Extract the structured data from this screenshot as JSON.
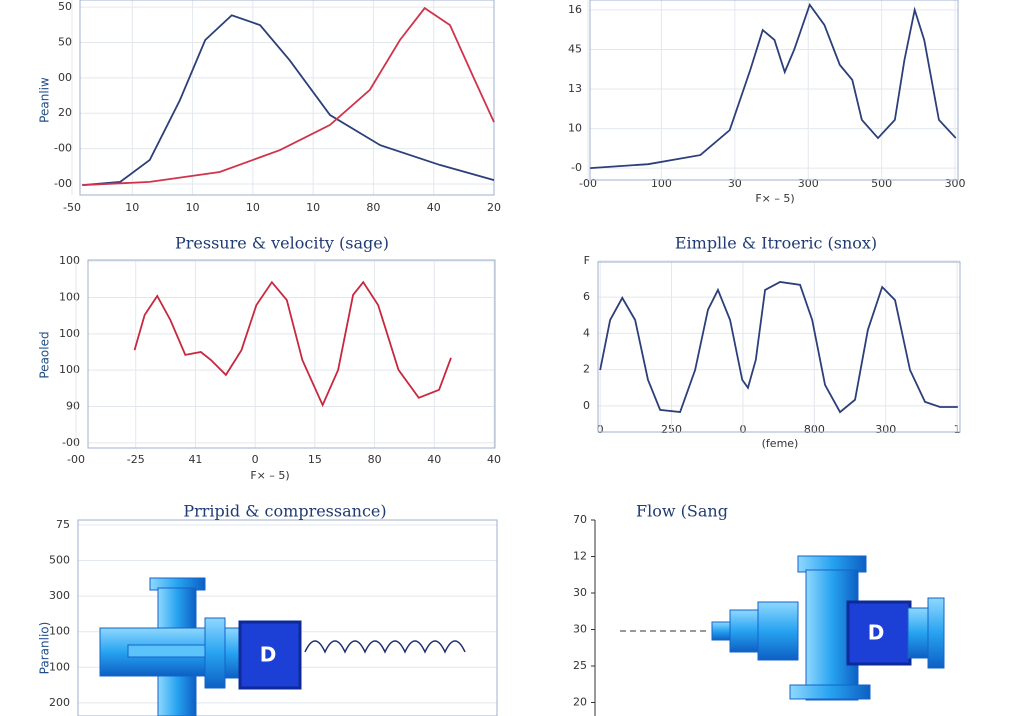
{
  "chart_data": [
    {
      "type": "line",
      "y_label": "Peanliw",
      "grid": true,
      "xlim": [
        0,
        7
      ],
      "ylim": [
        -0.31,
        5.2
      ],
      "xticks": [
        {
          "value": 0,
          "label": "-50"
        },
        {
          "value": 1,
          "label": "10"
        },
        {
          "value": 2,
          "label": "10"
        },
        {
          "value": 3,
          "label": "10"
        },
        {
          "value": 4,
          "label": "10"
        },
        {
          "value": 5,
          "label": "80"
        },
        {
          "value": 6,
          "label": "40"
        },
        {
          "value": 7,
          "label": "20"
        }
      ],
      "yticks": [
        {
          "value": 5,
          "label": "50"
        },
        {
          "value": 4,
          "label": "50"
        },
        {
          "value": 3,
          "label": "00"
        },
        {
          "value": 2,
          "label": "20"
        },
        {
          "value": 1,
          "label": "-00"
        },
        {
          "value": 0,
          "label": "-00"
        }
      ],
      "series": [
        {
          "color": "#2c3f7a",
          "x": [
            0.17,
            0.8,
            1.29,
            1.79,
            2.21,
            2.65,
            3.12,
            3.61,
            4.28,
            5.11,
            6.1,
            7.0
          ],
          "values": [
            -0.03,
            0.06,
            0.68,
            2.37,
            4.07,
            4.77,
            4.49,
            3.5,
            1.95,
            1.1,
            0.54,
            0.11
          ]
        },
        {
          "color": "#d0344c",
          "x": [
            0.17,
            1.29,
            2.45,
            3.45,
            4.28,
            4.94,
            5.44,
            5.85,
            6.27,
            6.68,
            7.0
          ],
          "values": [
            -0.03,
            0.06,
            0.34,
            0.96,
            1.67,
            2.66,
            4.07,
            4.97,
            4.49,
            2.94,
            1.75
          ]
        }
      ]
    },
    {
      "type": "line",
      "x_label": "F× – 5)",
      "grid": true,
      "xlim": [
        0,
        5.04
      ],
      "ylim": [
        -0.3,
        4.25
      ],
      "xticks": [
        {
          "value": 0,
          "label": "-00"
        },
        {
          "value": 1,
          "label": "100"
        },
        {
          "value": 2,
          "label": "30"
        },
        {
          "value": 3,
          "label": "300"
        },
        {
          "value": 4,
          "label": "500"
        },
        {
          "value": 5,
          "label": "300"
        }
      ],
      "yticks": [
        {
          "value": 4,
          "label": "16"
        },
        {
          "value": 3,
          "label": "45"
        },
        {
          "value": 2,
          "label": "13"
        },
        {
          "value": 1,
          "label": "10"
        },
        {
          "value": 0,
          "label": "-0"
        }
      ],
      "series": [
        {
          "color": "#2c3f7a",
          "x": [
            0.03,
            0.82,
            1.53,
            1.93,
            2.21,
            2.38,
            2.54,
            2.68,
            2.81,
            3.02,
            3.22,
            3.43,
            3.6,
            3.73,
            3.95,
            4.18,
            4.31,
            4.45,
            4.58,
            4.78,
            5.01
          ],
          "values": [
            0,
            0.1,
            0.33,
            0.96,
            2.48,
            3.49,
            3.24,
            2.43,
            3.0,
            4.13,
            3.62,
            2.61,
            2.23,
            1.22,
            0.76,
            1.22,
            2.73,
            4.0,
            3.24,
            1.22,
            0.76
          ]
        }
      ]
    },
    {
      "type": "line",
      "title": "Pressure & velocity (sage)",
      "x_label": "F× – 5)",
      "y_label": "Peaoled",
      "grid": true,
      "xlim": [
        0.1,
        7
      ],
      "ylim": [
        -0.14,
        5.03
      ],
      "xticks": [
        {
          "value": 0,
          "label": "-00"
        },
        {
          "value": 1,
          "label": "-25"
        },
        {
          "value": 2,
          "label": "41"
        },
        {
          "value": 3,
          "label": "0"
        },
        {
          "value": 4,
          "label": "15"
        },
        {
          "value": 5,
          "label": "80"
        },
        {
          "value": 6,
          "label": "40"
        },
        {
          "value": 7,
          "label": "40"
        }
      ],
      "yticks": [
        {
          "value": 5,
          "label": "100"
        },
        {
          "value": 4,
          "label": "100"
        },
        {
          "value": 3,
          "label": "100"
        },
        {
          "value": 2,
          "label": "100"
        },
        {
          "value": 1,
          "label": "90"
        },
        {
          "value": 0,
          "label": "-00"
        }
      ],
      "series": [
        {
          "color": "#c8283f",
          "x": [
            0.98,
            1.15,
            1.36,
            1.58,
            1.83,
            2.09,
            2.26,
            2.51,
            2.77,
            3.02,
            3.28,
            3.53,
            3.79,
            4.13,
            4.39,
            4.64,
            4.81,
            5.06,
            5.4,
            5.74,
            6.08,
            6.28
          ],
          "values": [
            2.55,
            3.52,
            4.04,
            3.38,
            2.42,
            2.5,
            2.28,
            1.87,
            2.55,
            3.79,
            4.42,
            3.93,
            2.28,
            1.04,
            2.01,
            4.07,
            4.42,
            3.79,
            2.01,
            1.24,
            1.46,
            2.34
          ]
        }
      ]
    },
    {
      "type": "line",
      "title": "Eimplle & Itroeric (snox)",
      "x_label": "(feme)",
      "grid": true,
      "xlim": [
        -0.03,
        5.04
      ],
      "ylim": [
        -0.72,
        3.97
      ],
      "xticks": [
        {
          "value": 0,
          "label": "0"
        },
        {
          "value": 1,
          "label": "250"
        },
        {
          "value": 2,
          "label": "0"
        },
        {
          "value": 3,
          "label": "800"
        },
        {
          "value": 4,
          "label": "300"
        },
        {
          "value": 5,
          "label": "1"
        }
      ],
      "yticks": [
        {
          "value": 4,
          "label": "F"
        },
        {
          "value": 3,
          "label": "6"
        },
        {
          "value": 2,
          "label": "4"
        },
        {
          "value": 1,
          "label": "2"
        },
        {
          "value": 0,
          "label": "0"
        }
      ],
      "series": [
        {
          "color": "#2c3f7a",
          "x": [
            0,
            0.14,
            0.31,
            0.49,
            0.67,
            0.84,
            1.12,
            1.33,
            1.51,
            1.65,
            1.82,
            1.99,
            2.07,
            2.18,
            2.31,
            2.52,
            2.8,
            2.97,
            3.15,
            3.36,
            3.57,
            3.75,
            3.95,
            4.13,
            4.34,
            4.55,
            4.76,
            5.01
          ],
          "values": [
            0.99,
            2.37,
            2.98,
            2.37,
            0.72,
            -0.11,
            -0.17,
            0.99,
            2.65,
            3.2,
            2.37,
            0.72,
            0.5,
            1.27,
            3.2,
            3.42,
            3.34,
            2.37,
            0.58,
            -0.17,
            0.17,
            2.1,
            3.28,
            2.92,
            0.99,
            0.11,
            -0.03,
            -0.03
          ]
        }
      ]
    },
    {
      "type": "illustration",
      "title": "Prripid & compressance)",
      "y_label": "Paranlio)",
      "label": "D",
      "grid": true,
      "ylim": [
        -0.37,
        5.14
      ],
      "yticks": [
        {
          "value": 5,
          "label": "75"
        },
        {
          "value": 4,
          "label": "500"
        },
        {
          "value": 3,
          "label": "300"
        },
        {
          "value": 2,
          "label": "100"
        },
        {
          "value": 1,
          "label": "100"
        },
        {
          "value": 0,
          "label": "200"
        }
      ]
    },
    {
      "type": "illustration",
      "title": "Flow (Sang",
      "label": "D",
      "grid": false,
      "ylim": [
        -0.37,
        5.0
      ],
      "yticks": [
        {
          "value": 5,
          "label": "70"
        },
        {
          "value": 4,
          "label": "12"
        },
        {
          "value": 3,
          "label": "30"
        },
        {
          "value": 2,
          "label": "30"
        },
        {
          "value": 1,
          "label": "25"
        },
        {
          "value": 0,
          "label": "20"
        }
      ]
    }
  ]
}
